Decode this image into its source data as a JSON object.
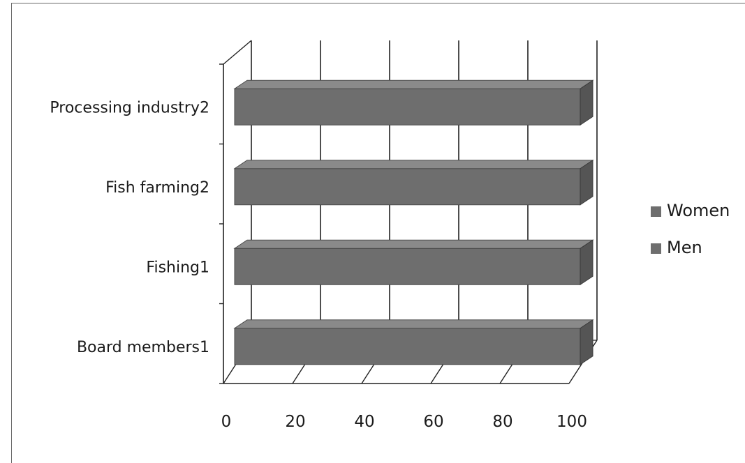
{
  "chart_data": {
    "type": "bar",
    "orientation": "horizontal",
    "stacked": true,
    "three_d": true,
    "categories": [
      "Board members1",
      "Fishing1",
      "Fish farming2",
      "Processing industry2"
    ],
    "series": [
      {
        "name": "Women",
        "values": [
          0,
          0,
          0,
          0
        ],
        "color": "#6e6e6e"
      },
      {
        "name": "Men",
        "values": [
          100,
          100,
          100,
          100
        ],
        "color": "#6e6e6e"
      }
    ],
    "xticks": [
      "0",
      "20",
      "40",
      "60",
      "80",
      "100"
    ],
    "xlim": [
      0,
      100
    ],
    "grid": true,
    "legend_position": "right"
  }
}
